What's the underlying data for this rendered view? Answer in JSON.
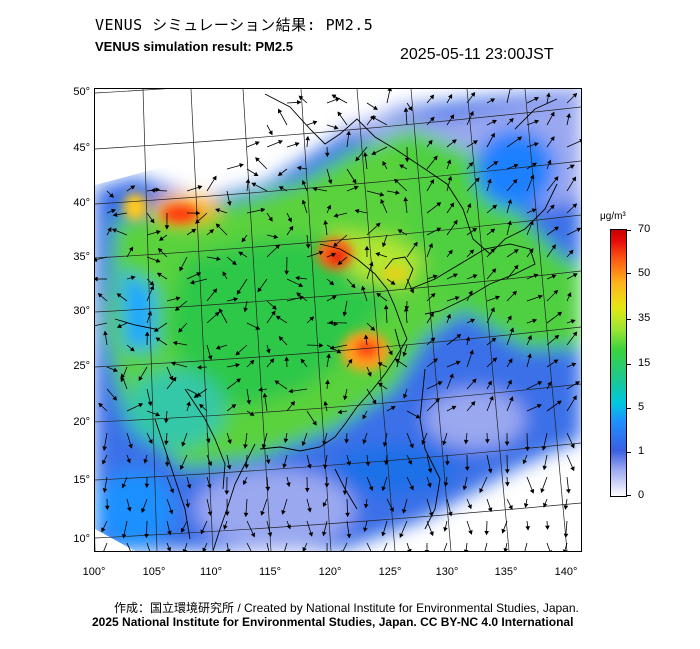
{
  "title_jp": "VENUS シミュレーション結果: PM2.5",
  "title_en": "VENUS simulation result: PM2.5",
  "timestamp": "2025-05-11 23:00JST",
  "map": {
    "lat_labels": [
      "50°",
      "45°",
      "40°",
      "35°",
      "30°",
      "25°",
      "20°",
      "15°",
      "10°"
    ],
    "lon_labels": [
      "100°",
      "105°",
      "110°",
      "115°",
      "120°",
      "125°",
      "130°",
      "135°",
      "140°"
    ]
  },
  "colorbar": {
    "unit": "μg/m³",
    "labels": [
      "70",
      "50",
      "35",
      "15",
      "5",
      "1",
      "0"
    ]
  },
  "footer": {
    "credit": "作成：国立環境研究所 / Created by National Institute for Environmental Studies, Japan.",
    "copyright": "2025 National Institute for Environmental Studies, Japan. CC BY-NC 4.0 International"
  }
}
